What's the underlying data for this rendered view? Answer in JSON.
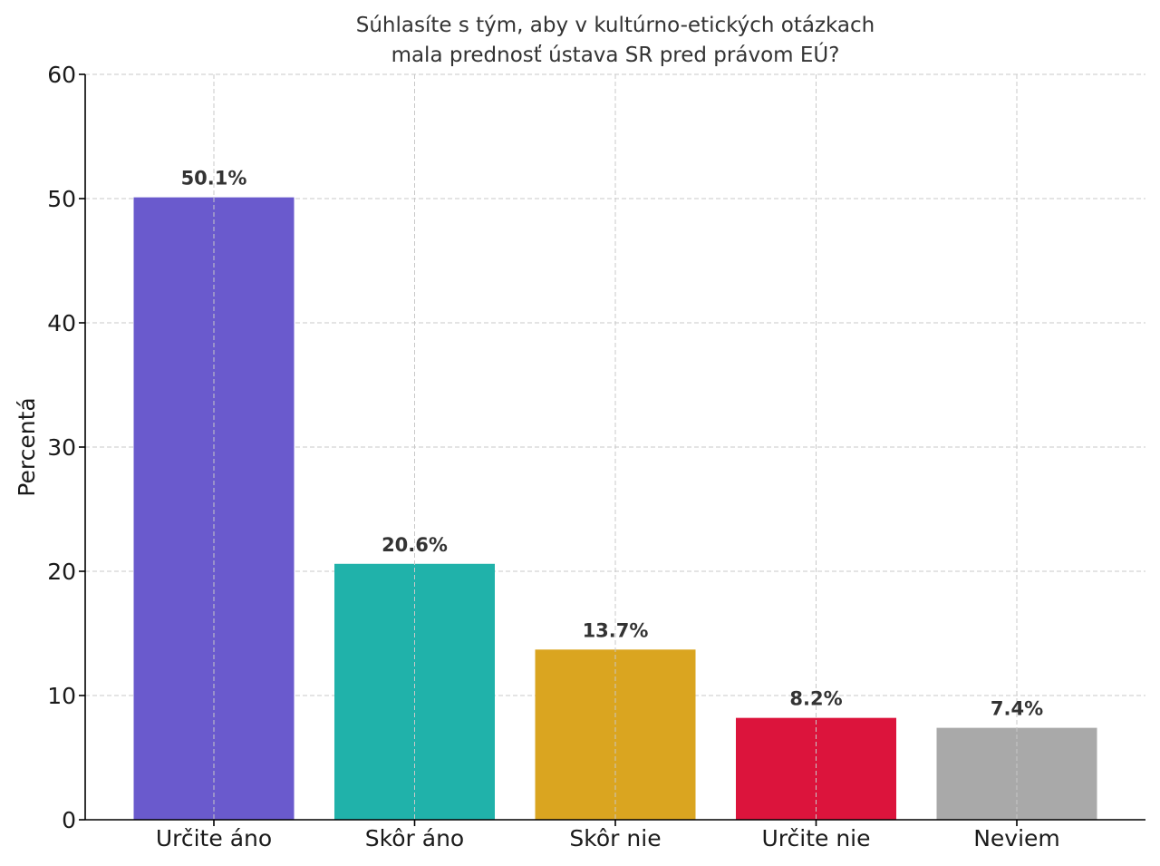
{
  "chart_data": {
    "type": "bar",
    "title_lines": [
      "Súhlasíte s tým, aby v kultúrno-etických otázkach",
      "mala prednosť ústava SR pred právom EÚ?"
    ],
    "xlabel": "",
    "ylabel": "Percentá",
    "categories": [
      "Určite áno",
      "Skôr áno",
      "Skôr nie",
      "Určite nie",
      "Neviem"
    ],
    "values": [
      50.1,
      20.6,
      13.7,
      8.2,
      7.4
    ],
    "value_labels": [
      "50.1%",
      "20.6%",
      "13.7%",
      "8.2%",
      "7.4%"
    ],
    "colors": [
      "#6a5acd",
      "#20b2aa",
      "#daa520",
      "#dc143c",
      "#a9a9a9"
    ],
    "ylim": [
      0,
      60
    ],
    "yticks": [
      0,
      10,
      20,
      30,
      40,
      50,
      60
    ],
    "ytick_labels": [
      "0",
      "10",
      "20",
      "30",
      "40",
      "50",
      "60"
    ],
    "grid": true,
    "legend": "none"
  }
}
